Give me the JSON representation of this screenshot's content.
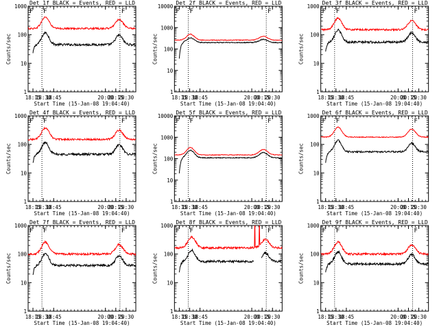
{
  "figure": {
    "colors": {
      "events": "#000000",
      "lld": "#ff0000",
      "axes": "#000000",
      "background": "#ffffff"
    }
  },
  "chart_data": [
    {
      "type": "line",
      "title": "Det 1f BLACK = Events, RED = LLD",
      "xlabel": "Start Time (15-Jan-08 19:04:40)",
      "ylabel": "Counts/sec",
      "yscale": "log",
      "ylim": [
        1,
        1000
      ],
      "xlim": [
        "18:08",
        "20:44"
      ],
      "xticks": [
        "18:15",
        "18:30",
        "18:45",
        "20:00",
        "20:15",
        "20:30"
      ],
      "yticks": [
        "1",
        "10",
        "100",
        "1000"
      ],
      "vlines": [
        "18:28",
        "20:21"
      ],
      "markers": [
        "F",
        "F"
      ],
      "series": [
        {
          "name": "Events",
          "start": "18:15",
          "end": "20:44",
          "base": 45,
          "peaks": [
            [
              18.55,
              0.42,
              0.12
            ],
            [
              20.33,
              0.33,
              0.12
            ]
          ],
          "startlow": 22,
          "noise": 0.04
        },
        {
          "name": "LLD",
          "start": "18:08",
          "end": "20:44",
          "base": 165,
          "peaks": [
            [
              18.55,
              0.4,
              0.13
            ],
            [
              20.33,
              0.32,
              0.13
            ]
          ],
          "noise": 0.03
        }
      ]
    },
    {
      "type": "line",
      "title": "Det 2f BLACK = Events, RED = LLD",
      "xlabel": "Start Time (15-Jan-08 19:04:40)",
      "ylabel": "Counts/sec",
      "yscale": "log",
      "ylim": [
        1,
        10000
      ],
      "xlim": [
        "18:08",
        "20:44"
      ],
      "xticks": [
        "18:15",
        "18:30",
        "18:45",
        "20:00",
        "20:15",
        "20:30"
      ],
      "yticks": [
        "1",
        "10",
        "100",
        "1000",
        "10000"
      ],
      "vlines": [
        "18:28",
        "20:21"
      ],
      "markers": [
        "F",
        "F"
      ],
      "series": [
        {
          "name": "Events",
          "start": "18:15",
          "end": "20:44",
          "base": 200,
          "peaks": [
            [
              18.52,
              0.22,
              0.13
            ],
            [
              20.28,
              0.15,
              0.14
            ]
          ],
          "startlow": 35,
          "noise": 0.02
        },
        {
          "name": "LLD",
          "start": "18:08",
          "end": "20:44",
          "base": 260,
          "peaks": [
            [
              18.52,
              0.28,
              0.13
            ],
            [
              20.28,
              0.18,
              0.14
            ]
          ],
          "noise": 0.015
        }
      ]
    },
    {
      "type": "line",
      "title": "Det 3f BLACK = Events, RED = LLD",
      "xlabel": "Start Time (15-Jan-08 19:04:40)",
      "ylabel": "Counts/sec",
      "yscale": "log",
      "ylim": [
        1,
        1000
      ],
      "xlim": [
        "18:08",
        "20:44"
      ],
      "xticks": [
        "18:15",
        "18:30",
        "18:45",
        "20:00",
        "20:15",
        "20:30"
      ],
      "yticks": [
        "1",
        "10",
        "100",
        "1000"
      ],
      "vlines": [
        "18:28",
        "20:21"
      ],
      "markers": [
        "F",
        "F"
      ],
      "series": [
        {
          "name": "Events",
          "start": "18:15",
          "end": "20:44",
          "base": 55,
          "peaks": [
            [
              18.55,
              0.42,
              0.12
            ],
            [
              20.33,
              0.33,
              0.12
            ]
          ],
          "startlow": 25,
          "noise": 0.04
        },
        {
          "name": "LLD",
          "start": "18:08",
          "end": "20:44",
          "base": 150,
          "peaks": [
            [
              18.55,
              0.4,
              0.13
            ],
            [
              20.33,
              0.32,
              0.13
            ]
          ],
          "noise": 0.03
        }
      ]
    },
    {
      "type": "line",
      "title": "Det 4f BLACK = Events, RED = LLD",
      "xlabel": "Start Time (15-Jan-08 19:04:40)",
      "ylabel": "Counts/sec",
      "yscale": "log",
      "ylim": [
        1,
        1000
      ],
      "xlim": [
        "18:08",
        "20:44"
      ],
      "xticks": [
        "18:15",
        "18:30",
        "18:45",
        "20:00",
        "20:15",
        "20:30"
      ],
      "yticks": [
        "1",
        "10",
        "100",
        "1000"
      ],
      "vlines": [
        "18:28",
        "20:21"
      ],
      "markers": [
        "F",
        "F"
      ],
      "series": [
        {
          "name": "Events",
          "start": "18:15",
          "end": "20:44",
          "base": 45,
          "peaks": [
            [
              18.55,
              0.42,
              0.12
            ],
            [
              20.33,
              0.33,
              0.12
            ]
          ],
          "startlow": 22,
          "noise": 0.04
        },
        {
          "name": "LLD",
          "start": "18:08",
          "end": "20:44",
          "base": 150,
          "peaks": [
            [
              18.55,
              0.4,
              0.13
            ],
            [
              20.33,
              0.32,
              0.13
            ]
          ],
          "noise": 0.03
        }
      ]
    },
    {
      "type": "line",
      "title": "Det 5f BLACK = Events, RED = LLD",
      "xlabel": "Start Time (15-Jan-08 19:04:40)",
      "ylabel": "Counts/sec",
      "yscale": "log",
      "ylim": [
        1,
        10000
      ],
      "xlim": [
        "18:08",
        "20:44"
      ],
      "xticks": [
        "18:15",
        "18:30",
        "18:45",
        "20:00",
        "20:15",
        "20:30"
      ],
      "yticks": [
        "1",
        "10",
        "100",
        "1000",
        "10000"
      ],
      "vlines": [
        "18:28",
        "20:21"
      ],
      "markers": [
        "F",
        "F"
      ],
      "series": [
        {
          "name": "Events",
          "start": "18:15",
          "end": "20:44",
          "base": 110,
          "peaks": [
            [
              18.52,
              0.35,
              0.13
            ],
            [
              20.28,
              0.25,
              0.14
            ]
          ],
          "startlow": 20,
          "noise": 0.02
        },
        {
          "name": "LLD",
          "start": "18:08",
          "end": "20:44",
          "base": 150,
          "peaks": [
            [
              18.52,
              0.35,
              0.13
            ],
            [
              20.28,
              0.25,
              0.14
            ]
          ],
          "noise": 0.015
        }
      ]
    },
    {
      "type": "line",
      "title": "Det 6f BLACK = Events, RED = LLD",
      "xlabel": "Start Time (15-Jan-08 19:04:40)",
      "ylabel": "Counts/sec",
      "yscale": "log",
      "ylim": [
        1,
        1000
      ],
      "xlim": [
        "18:08",
        "20:44"
      ],
      "xticks": [
        "18:15",
        "18:30",
        "18:45",
        "20:00",
        "20:15",
        "20:30"
      ],
      "yticks": [
        "1",
        "10",
        "100",
        "1000"
      ],
      "vlines": [
        "18:28",
        "20:21"
      ],
      "markers": [
        "F",
        "F"
      ],
      "series": [
        {
          "name": "Events",
          "start": "18:15",
          "end": "20:44",
          "base": 55,
          "peaks": [
            [
              18.55,
              0.4,
              0.12
            ],
            [
              20.33,
              0.3,
              0.12
            ]
          ],
          "startlow": 22,
          "noise": 0.03
        },
        {
          "name": "LLD",
          "start": "18:08",
          "end": "20:44",
          "base": 180,
          "peaks": [
            [
              18.55,
              0.35,
              0.13
            ],
            [
              20.33,
              0.28,
              0.13
            ]
          ],
          "noise": 0.015
        }
      ]
    },
    {
      "type": "line",
      "title": "Det 7f BLACK = Events, RED = LLD",
      "xlabel": "Start Time (15-Jan-08 19:04:40)",
      "ylabel": "Counts/sec",
      "yscale": "log",
      "ylim": [
        1,
        1000
      ],
      "xlim": [
        "18:08",
        "20:44"
      ],
      "xticks": [
        "18:15",
        "18:30",
        "18:45",
        "20:00",
        "20:15",
        "20:30"
      ],
      "yticks": [
        "1",
        "10",
        "100",
        "1000"
      ],
      "vlines": [
        "18:28",
        "20:21"
      ],
      "markers": [
        "F",
        "F"
      ],
      "series": [
        {
          "name": "Events",
          "start": "18:15",
          "end": "20:44",
          "base": 40,
          "peaks": [
            [
              18.55,
              0.42,
              0.12
            ],
            [
              20.33,
              0.33,
              0.12
            ]
          ],
          "startlow": 18,
          "noise": 0.04
        },
        {
          "name": "LLD",
          "start": "18:08",
          "end": "20:44",
          "base": 100,
          "peaks": [
            [
              18.55,
              0.42,
              0.13
            ],
            [
              20.33,
              0.33,
              0.13
            ]
          ],
          "noise": 0.035
        }
      ]
    },
    {
      "type": "line",
      "title": "Det 8f BLACK = Events, RED = LLD",
      "xlabel": "Start Time (15-Jan-08 19:04:40)",
      "ylabel": "Counts/sec",
      "yscale": "log",
      "ylim": [
        1,
        1000
      ],
      "xlim": [
        "18:08",
        "20:44"
      ],
      "xticks": [
        "18:15",
        "18:30",
        "18:45",
        "20:00",
        "20:15",
        "20:30"
      ],
      "yticks": [
        "1",
        "10",
        "100",
        "1000"
      ],
      "vlines": [
        "18:28",
        "20:21"
      ],
      "markers": [
        "F",
        "F"
      ],
      "series": [
        {
          "name": "Events",
          "start": "18:15",
          "end": "20:44",
          "base": 55,
          "peaks": [
            [
              18.55,
              0.4,
              0.12
            ],
            [
              20.33,
              0.3,
              0.12
            ]
          ],
          "startlow": 22,
          "noise": 0.04,
          "gap": [
            20.05,
            20.23
          ]
        },
        {
          "name": "LLD",
          "start": "18:08",
          "end": "20:44",
          "base": 165,
          "peaks": [
            [
              18.55,
              0.38,
              0.13
            ],
            [
              20.33,
              0.3,
              0.13
            ]
          ],
          "noise": 0.035,
          "spikes": [
            20.07,
            20.18
          ]
        }
      ]
    },
    {
      "type": "line",
      "title": "Det 9f BLACK = Events, RED = LLD",
      "xlabel": "Start Time (15-Jan-08 19:04:40)",
      "ylabel": "Counts/sec",
      "yscale": "log",
      "ylim": [
        1,
        1000
      ],
      "xlim": [
        "18:08",
        "20:44"
      ],
      "xticks": [
        "18:15",
        "18:30",
        "18:45",
        "20:00",
        "20:15",
        "20:30"
      ],
      "yticks": [
        "1",
        "10",
        "100",
        "1000"
      ],
      "vlines": [
        "18:28",
        "20:21"
      ],
      "markers": [
        "F",
        "F"
      ],
      "series": [
        {
          "name": "Events",
          "start": "18:15",
          "end": "20:44",
          "base": 45,
          "peaks": [
            [
              18.55,
              0.42,
              0.12
            ],
            [
              20.33,
              0.33,
              0.12
            ]
          ],
          "startlow": 22,
          "noise": 0.04
        },
        {
          "name": "LLD",
          "start": "18:08",
          "end": "20:44",
          "base": 100,
          "peaks": [
            [
              18.55,
              0.42,
              0.13
            ],
            [
              20.33,
              0.33,
              0.13
            ]
          ],
          "noise": 0.035
        }
      ]
    }
  ]
}
